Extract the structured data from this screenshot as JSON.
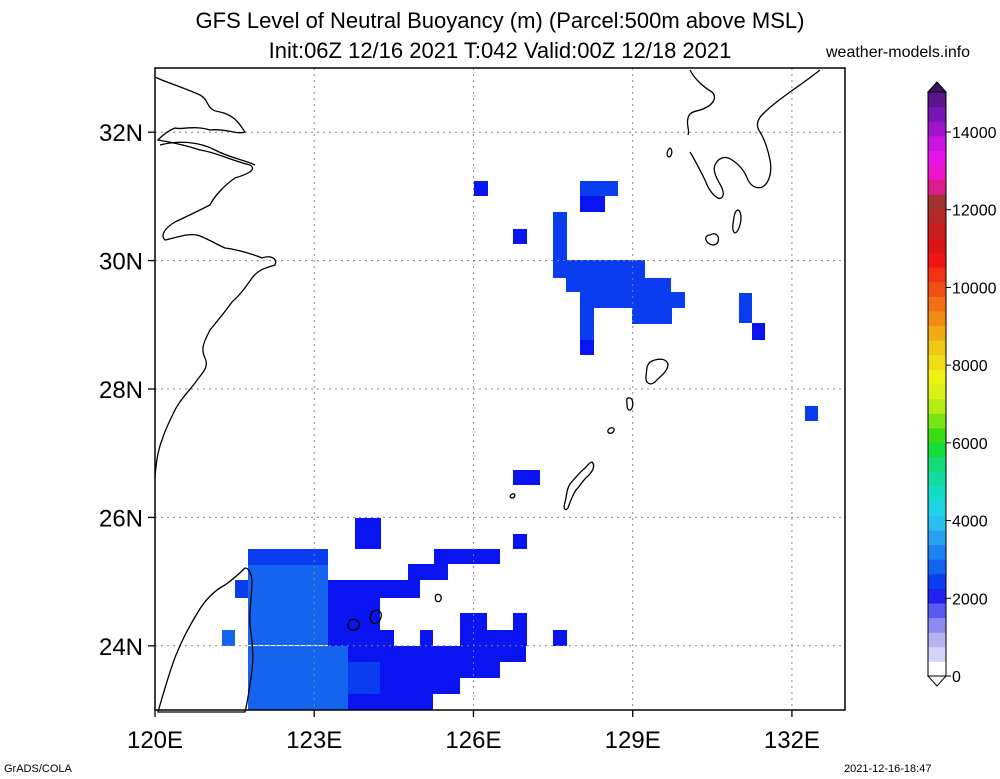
{
  "title": {
    "line1": "GFS Level of Neutral Buoyancy (m) (Parcel:500m above MSL)",
    "line2": "Init:06Z 12/16 2021 T:042 Valid:00Z 12/18 2021"
  },
  "watermark": "weather-models.info",
  "footer": {
    "left": "GrADS/COLA",
    "right": "2021-12-16-18:47"
  },
  "map": {
    "lon_range": [
      120,
      133
    ],
    "lat_range": [
      23,
      33
    ],
    "lon_ticks": [
      {
        "value": 120,
        "label": "120E"
      },
      {
        "value": 123,
        "label": "123E"
      },
      {
        "value": 126,
        "label": "126E"
      },
      {
        "value": 129,
        "label": "129E"
      },
      {
        "value": 132,
        "label": "132E"
      }
    ],
    "lat_ticks": [
      {
        "value": 24,
        "label": "24N"
      },
      {
        "value": 26,
        "label": "26N"
      },
      {
        "value": 28,
        "label": "28N"
      },
      {
        "value": 30,
        "label": "30N"
      },
      {
        "value": 32,
        "label": "32N"
      }
    ],
    "grid": true
  },
  "colorbar": {
    "labels": [
      "0",
      "2000",
      "4000",
      "6000",
      "8000",
      "10000",
      "12000",
      "14000"
    ],
    "colors": [
      "#ffffff",
      "#d4d4f8",
      "#b4b4f0",
      "#8c8cf0",
      "#5a5af0",
      "#2020f0",
      "#0a3cf0",
      "#1464f0",
      "#1e82f0",
      "#28a0f0",
      "#2dbef0",
      "#20d2e6",
      "#14dcc8",
      "#14dca0",
      "#14dc78",
      "#14dc3c",
      "#3cdc14",
      "#78e614",
      "#b4ec14",
      "#dcf014",
      "#f0f014",
      "#f0dc14",
      "#f0c814",
      "#f0aa14",
      "#f08c14",
      "#f07014",
      "#f05014",
      "#f03214",
      "#f01414",
      "#dc1414",
      "#c81e1e",
      "#b42828",
      "#a03232",
      "#dc1e8c",
      "#f014c8",
      "#e614e6",
      "#c814dc",
      "#a014c8",
      "#7814b4",
      "#5a148c"
    ]
  },
  "cape_cells": {
    "blue": "#0a14f0",
    "mid": "#0a3cf0",
    "light": "#1464f0"
  }
}
